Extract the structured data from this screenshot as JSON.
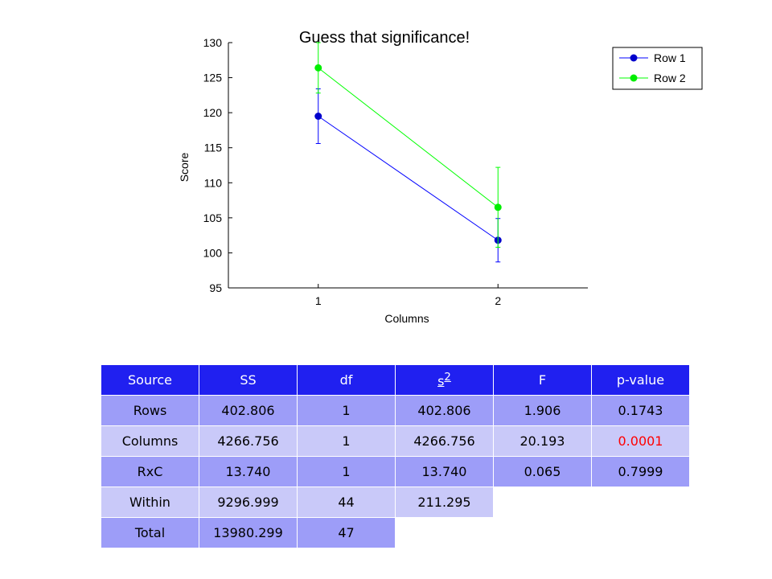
{
  "chart_data": {
    "type": "line",
    "title": "Guess that significance!",
    "xlabel": "Columns",
    "ylabel": "Score",
    "x": [
      1,
      2
    ],
    "xticks": [
      1,
      2
    ],
    "xlim": [
      0.5,
      2.5
    ],
    "yticks": [
      95,
      100,
      105,
      110,
      115,
      120,
      125,
      130
    ],
    "ylim": [
      95,
      130
    ],
    "legend_position": "top-right",
    "grid": false,
    "series": [
      {
        "name": "Row 1",
        "color": "#0000ff",
        "marker_color": "#0000cc",
        "values": [
          119.5,
          101.8
        ],
        "error_low": [
          115.6,
          98.7
        ],
        "error_high": [
          123.4,
          104.9
        ]
      },
      {
        "name": "Row 2",
        "color": "#00ff00",
        "marker_color": "#00ee00",
        "values": [
          126.4,
          106.5
        ],
        "error_low": [
          122.8,
          100.8
        ],
        "error_high": [
          130.0,
          112.2
        ]
      }
    ]
  },
  "table": {
    "headers": [
      "Source",
      "SS",
      "df",
      "s",
      "F",
      "p-value"
    ],
    "s_superscript": "2",
    "rows": [
      [
        "Rows",
        "402.806",
        "1",
        "402.806",
        "1.906",
        "0.1743"
      ],
      [
        "Columns",
        "4266.756",
        "1",
        "4266.756",
        "20.193",
        "0.0001"
      ],
      [
        "RxC",
        "13.740",
        "1",
        "13.740",
        "0.065",
        "0.7999"
      ],
      [
        "Within",
        "9296.999",
        "44",
        "211.295",
        "",
        ""
      ],
      [
        "Total",
        "13980.299",
        "47",
        "",
        "",
        ""
      ]
    ],
    "significant_color": "#ff0000"
  }
}
